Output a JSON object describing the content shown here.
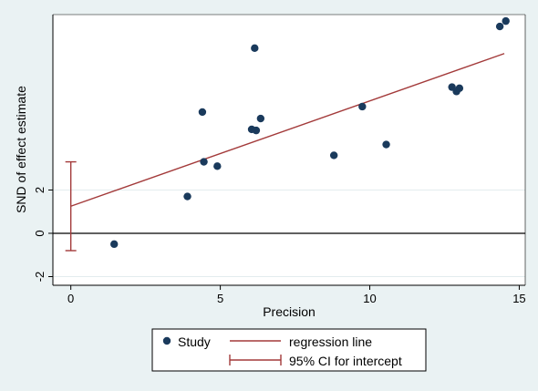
{
  "chart_data": {
    "type": "scatter",
    "title": "",
    "xlabel": "Precision",
    "ylabel": "SND of effect estimate",
    "xlim": [
      -0.6,
      15.2
    ],
    "ylim": [
      -2.4,
      10.1
    ],
    "xticks": [
      0,
      5,
      10,
      15
    ],
    "xtick_labels": [
      "0",
      "5",
      "10",
      "15"
    ],
    "yticks": [
      -2,
      0,
      2
    ],
    "ytick_labels": [
      "-2",
      "0",
      "2"
    ],
    "grid": "horizontal",
    "zero_line": 0,
    "series": [
      {
        "name": "Study",
        "color": "#1a3a5c",
        "x": [
          1.45,
          3.9,
          4.4,
          4.45,
          4.9,
          6.05,
          6.2,
          6.35,
          6.15,
          8.8,
          9.75,
          10.55,
          12.75,
          12.9,
          13.0,
          14.35,
          14.55
        ],
        "y": [
          -0.5,
          1.7,
          5.6,
          3.3,
          3.1,
          4.8,
          4.75,
          5.3,
          8.55,
          3.6,
          5.85,
          4.1,
          6.75,
          6.55,
          6.7,
          9.55,
          9.8
        ]
      }
    ],
    "regression": {
      "name": "regression line",
      "color": "#a33a3a",
      "x": [
        0,
        14.5
      ],
      "y": [
        1.25,
        8.3
      ]
    },
    "intercept_ci": {
      "name": "95% CI for intercept",
      "color": "#a33a3a",
      "x": 0,
      "low": -0.8,
      "high": 3.3
    },
    "legend_position": "bottom"
  },
  "colors": {
    "background": "#eaf2f3",
    "plot_area": "#ffffff",
    "grid": "#e3ecee",
    "axis": "#000000"
  }
}
